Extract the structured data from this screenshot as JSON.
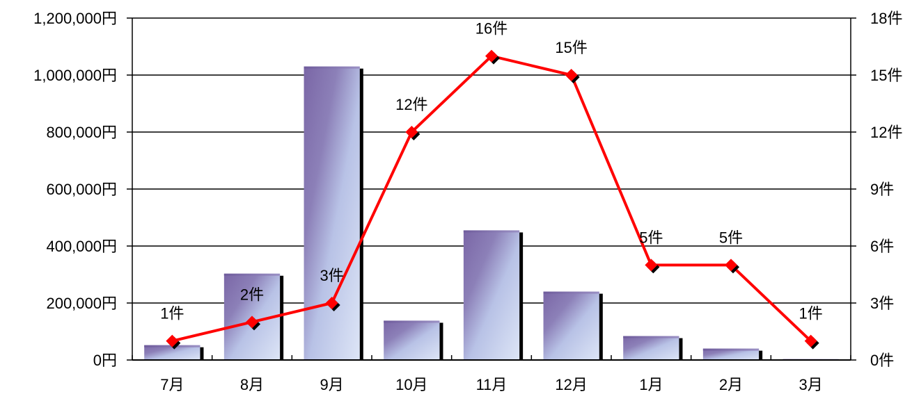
{
  "chart_data": {
    "type": "bar",
    "categories": [
      "7月",
      "8月",
      "9月",
      "10月",
      "11月",
      "12月",
      "1月",
      "2月",
      "3月"
    ],
    "series": [
      {
        "type": "bar",
        "axis": "left",
        "values": [
          52000,
          303000,
          1030000,
          138000,
          455000,
          240000,
          84000,
          40000,
          3000
        ]
      },
      {
        "type": "line",
        "axis": "right",
        "values": [
          1,
          2,
          3,
          12,
          16,
          15,
          5,
          5,
          1
        ],
        "data_labels": [
          "1件",
          "2件",
          "3件",
          "12件",
          "16件",
          "15件",
          "5件",
          "5件",
          "1件"
        ]
      }
    ],
    "y_left": {
      "ylim": [
        0,
        1200000
      ],
      "ticks": [
        0,
        200000,
        400000,
        600000,
        800000,
        1000000,
        1200000
      ],
      "tick_labels": [
        "0円",
        "200,000円",
        "400,000円",
        "600,000円",
        "800,000円",
        "1,000,000円",
        "1,200,000円"
      ]
    },
    "y_right": {
      "ylim": [
        0,
        18
      ],
      "ticks": [
        0,
        3,
        6,
        9,
        12,
        15,
        18
      ],
      "tick_labels": [
        "0件",
        "3件",
        "6件",
        "9件",
        "12件",
        "15件",
        "18件"
      ]
    },
    "grid": true,
    "legend": "none",
    "colors": {
      "bar_dark": "#7a66a6",
      "bar_light": "#d2dcf3",
      "line": "#ff0000",
      "marker": "#ff0000",
      "grid": "#000000"
    }
  }
}
